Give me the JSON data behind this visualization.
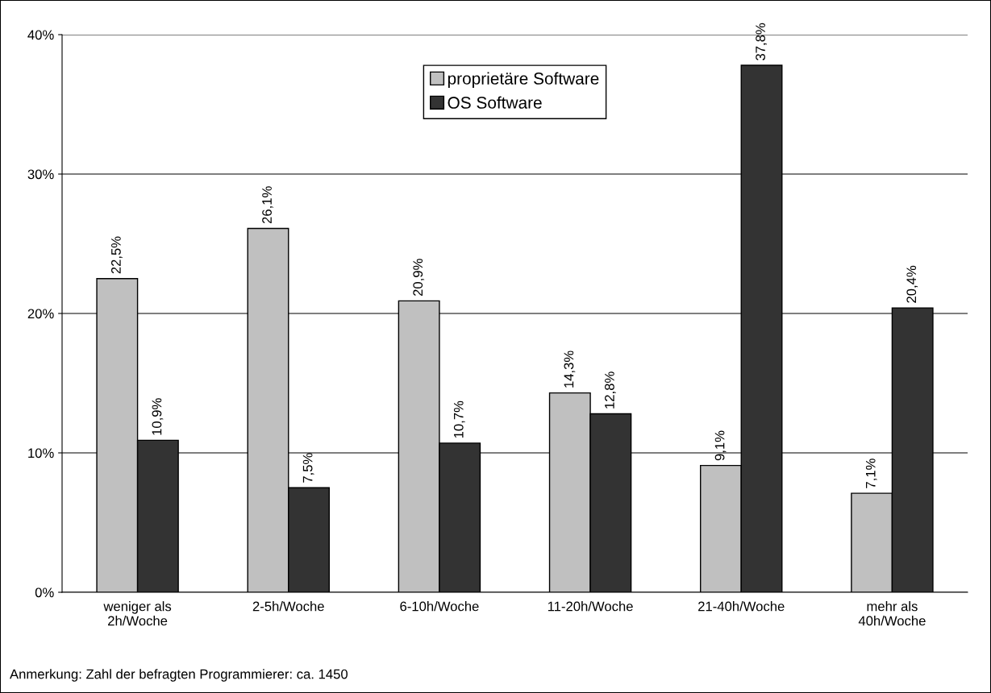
{
  "chart_data": {
    "type": "bar",
    "categories": [
      "weniger als\n2h/Woche",
      "2-5h/Woche",
      "6-10h/Woche",
      "11-20h/Woche",
      "21-40h/Woche",
      "mehr als\n40h/Woche"
    ],
    "series": [
      {
        "name": "proprietäre Software",
        "color": "#c0c0c0",
        "values": [
          22.5,
          26.1,
          20.9,
          14.3,
          9.1,
          7.1
        ],
        "value_labels": [
          "22,5%",
          "26,1%",
          "20,9%",
          "14,3%",
          "9,1%",
          "7,1%"
        ]
      },
      {
        "name": "OS Software",
        "color": "#333333",
        "values": [
          10.9,
          7.5,
          10.7,
          12.8,
          37.8,
          20.4
        ],
        "value_labels": [
          "10,9%",
          "7,5%",
          "10,7%",
          "12,8%",
          "37,8%",
          "20,4%"
        ]
      }
    ],
    "ylim": [
      0,
      40
    ],
    "yticks": [
      {
        "value": 0,
        "label": "0%"
      },
      {
        "value": 10,
        "label": "10%"
      },
      {
        "value": 20,
        "label": "20%"
      },
      {
        "value": 30,
        "label": "30%"
      },
      {
        "value": 40,
        "label": "40%"
      }
    ],
    "grid": "y",
    "legend": "top center",
    "annotations": [
      "Anmerkung: Zahl der befragten Programmierer: ca. 1450"
    ]
  }
}
